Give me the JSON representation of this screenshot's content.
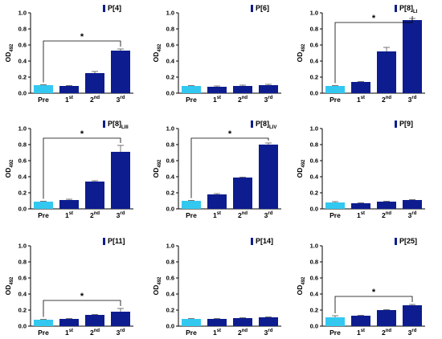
{
  "chart_data": [
    {
      "type": "bar",
      "legend": "P[4]",
      "legend_sub": "",
      "ylabel": "OD",
      "ylabel_sub": "492",
      "ylim": [
        0,
        1.0
      ],
      "yticks": [
        "0.0",
        "0.2",
        "0.4",
        "0.6",
        "0.8",
        "1.0"
      ],
      "categories": [
        "Pre",
        "1",
        "2",
        "3"
      ],
      "category_sups": [
        "",
        "st",
        "nd",
        "rd"
      ],
      "values": [
        0.1,
        0.09,
        0.25,
        0.53
      ],
      "errors": [
        0.005,
        0.005,
        0.02,
        0.02
      ],
      "significance": {
        "from": 0,
        "to": 3,
        "label": "*"
      }
    },
    {
      "type": "bar",
      "legend": "P[6]",
      "legend_sub": "",
      "ylabel": "OD",
      "ylabel_sub": "492",
      "ylim": [
        0,
        1.0
      ],
      "yticks": [
        "0.0",
        "0.2",
        "0.4",
        "0.6",
        "0.8",
        "1.0"
      ],
      "categories": [
        "Pre",
        "1",
        "2",
        "3"
      ],
      "category_sups": [
        "",
        "st",
        "nd",
        "rd"
      ],
      "values": [
        0.09,
        0.08,
        0.09,
        0.1
      ],
      "errors": [
        0.005,
        0.01,
        0.01,
        0.01
      ],
      "significance": null
    },
    {
      "type": "bar",
      "legend": "P[8]",
      "legend_sub": "LI",
      "ylabel": "OD",
      "ylabel_sub": "492",
      "ylim": [
        0,
        1.0
      ],
      "yticks": [
        "0.0",
        "0.2",
        "0.4",
        "0.6",
        "0.8",
        "1.0"
      ],
      "categories": [
        "Pre",
        "1",
        "2",
        "3"
      ],
      "category_sups": [
        "",
        "st",
        "nd",
        "rd"
      ],
      "values": [
        0.09,
        0.14,
        0.52,
        0.91
      ],
      "errors": [
        0.005,
        0.005,
        0.05,
        0.02
      ],
      "significance": {
        "from": 0,
        "to": 3,
        "label": "*"
      }
    },
    {
      "type": "bar",
      "legend": "P[8]",
      "legend_sub": "LIII",
      "ylabel": "OD",
      "ylabel_sub": "492",
      "ylim": [
        0,
        1.0
      ],
      "yticks": [
        "0.0",
        "0.2",
        "0.4",
        "0.6",
        "0.8",
        "1.0"
      ],
      "categories": [
        "Pre",
        "1",
        "2",
        "3"
      ],
      "category_sups": [
        "",
        "st",
        "nd",
        "rd"
      ],
      "values": [
        0.09,
        0.11,
        0.34,
        0.71
      ],
      "errors": [
        0.005,
        0.01,
        0.01,
        0.08
      ],
      "significance": {
        "from": 0,
        "to": 3,
        "label": "*"
      }
    },
    {
      "type": "bar",
      "legend": "P[8]",
      "legend_sub": "LIV",
      "ylabel": "OD",
      "ylabel_sub": "492",
      "ylim": [
        0,
        1.0
      ],
      "yticks": [
        "0.0",
        "0.2",
        "0.4",
        "0.6",
        "0.8",
        "1.0"
      ],
      "categories": [
        "Pre",
        "1",
        "2",
        "3"
      ],
      "category_sups": [
        "",
        "st",
        "nd",
        "rd"
      ],
      "values": [
        0.1,
        0.18,
        0.39,
        0.8
      ],
      "errors": [
        0.005,
        0.01,
        0.005,
        0.02
      ],
      "significance": {
        "from": 0,
        "to": 3,
        "label": "*"
      }
    },
    {
      "type": "bar",
      "legend": "P[9]",
      "legend_sub": "",
      "ylabel": "OD",
      "ylabel_sub": "492",
      "ylim": [
        0,
        1.0
      ],
      "yticks": [
        "0.0",
        "0.2",
        "0.4",
        "0.6",
        "0.8",
        "1.0"
      ],
      "categories": [
        "Pre",
        "1",
        "2",
        "3"
      ],
      "category_sups": [
        "",
        "st",
        "nd",
        "rd"
      ],
      "values": [
        0.08,
        0.07,
        0.09,
        0.11
      ],
      "errors": [
        0.01,
        0.005,
        0.005,
        0.005
      ],
      "significance": null
    },
    {
      "type": "bar",
      "legend": "P[11]",
      "legend_sub": "",
      "ylabel": "OD",
      "ylabel_sub": "492",
      "ylim": [
        0,
        1.0
      ],
      "yticks": [
        "0.0",
        "0.2",
        "0.4",
        "0.6",
        "0.8",
        "1.0"
      ],
      "categories": [
        "Pre",
        "1",
        "2",
        "3"
      ],
      "category_sups": [
        "",
        "st",
        "nd",
        "rd"
      ],
      "values": [
        0.08,
        0.09,
        0.14,
        0.18
      ],
      "errors": [
        0.005,
        0.005,
        0.005,
        0.04
      ],
      "significance": {
        "from": 0,
        "to": 3,
        "label": "*"
      }
    },
    {
      "type": "bar",
      "legend": "P[14]",
      "legend_sub": "",
      "ylabel": "OD",
      "ylabel_sub": "492",
      "ylim": [
        0,
        1.0
      ],
      "yticks": [
        "0.0",
        "0.2",
        "0.4",
        "0.6",
        "0.8",
        "1.0"
      ],
      "categories": [
        "Pre",
        "1",
        "2",
        "3"
      ],
      "category_sups": [
        "",
        "st",
        "nd",
        "rd"
      ],
      "values": [
        0.09,
        0.09,
        0.1,
        0.11
      ],
      "errors": [
        0.005,
        0.005,
        0.005,
        0.005
      ],
      "significance": null
    },
    {
      "type": "bar",
      "legend": "P[25]",
      "legend_sub": "",
      "ylabel": "OD",
      "ylabel_sub": "492",
      "ylim": [
        0,
        1.0
      ],
      "yticks": [
        "0.0",
        "0.2",
        "0.4",
        "0.6",
        "0.8",
        "1.0"
      ],
      "categories": [
        "Pre",
        "1",
        "2",
        "3"
      ],
      "category_sups": [
        "",
        "st",
        "nd",
        "rd"
      ],
      "values": [
        0.11,
        0.13,
        0.2,
        0.26
      ],
      "errors": [
        0.02,
        0.005,
        0.005,
        0.01
      ],
      "significance": {
        "from": 0,
        "to": 3,
        "label": "*"
      }
    }
  ],
  "colors": {
    "pre_bar": "#33c8f0",
    "post_bar": "#0d1d8f",
    "axis": "#000000",
    "error": "#555555"
  }
}
